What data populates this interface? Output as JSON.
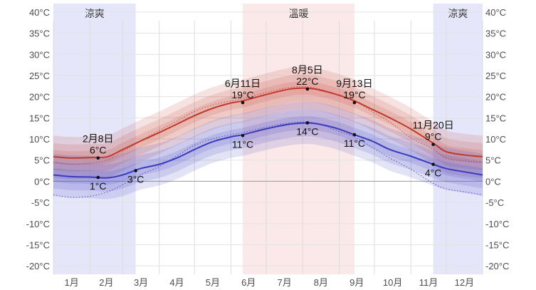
{
  "chart_data": {
    "type": "line",
    "title": "",
    "xlabel": "",
    "ylabel": "",
    "x_ticks": [
      "1月",
      "2月",
      "3月",
      "4月",
      "5月",
      "6月",
      "7月",
      "8月",
      "9月",
      "10月",
      "11月",
      "12月"
    ],
    "y_ticks": [
      "40°C",
      "35°C",
      "30°C",
      "25°C",
      "20°C",
      "15°C",
      "10°C",
      "5°C",
      "0°C",
      "-5°C",
      "-10°C",
      "-15°C",
      "-20°C"
    ],
    "ylim": [
      -22,
      42
    ],
    "xlim_day": [
      0,
      365
    ],
    "grid": true,
    "seasons": [
      {
        "label": "涼爽",
        "start_day": 0,
        "end_day": 70,
        "color": "#e6e6fb"
      },
      {
        "label": "溫暖",
        "start_day": 161,
        "end_day": 256,
        "color": "#fbe9e9"
      },
      {
        "label": "涼爽",
        "start_day": 323,
        "end_day": 365,
        "color": "#e6e6fb"
      }
    ],
    "x_day": [
      0,
      15,
      32,
      46,
      59,
      74,
      90,
      105,
      120,
      135,
      151,
      161,
      181,
      201,
      216,
      226,
      241,
      256,
      271,
      286,
      303,
      323,
      334,
      350,
      365
    ],
    "series": [
      {
        "role": "high",
        "color": "#c0392b",
        "values": [
          5.8,
          5.5,
          5.6,
          5.8,
          7.5,
          9.5,
          11.5,
          13.5,
          15.5,
          17.2,
          18.5,
          19.0,
          20.5,
          21.8,
          22.0,
          21.6,
          20.5,
          19.0,
          17.0,
          15.0,
          12.5,
          9.0,
          7.0,
          6.2,
          5.8
        ]
      },
      {
        "role": "low",
        "color": "#3b3bbd",
        "values": [
          1.5,
          1.1,
          1.0,
          0.8,
          1.5,
          3.0,
          4.0,
          5.5,
          7.5,
          9.3,
          10.5,
          11.0,
          12.4,
          13.5,
          13.8,
          13.5,
          12.5,
          11.0,
          9.5,
          7.5,
          6.0,
          4.0,
          3.0,
          2.2,
          1.5
        ]
      },
      {
        "role": "high-normal",
        "color": "#c0392b",
        "values": [
          4.5,
          4.0,
          4.3,
          5.0,
          7.0,
          9.5,
          12.0,
          14.2,
          16.5,
          18.0,
          19.0,
          19.5,
          21.0,
          22.2,
          22.3,
          21.8,
          20.5,
          19.0,
          16.5,
          14.0,
          10.5,
          7.5,
          5.5,
          4.8,
          4.5
        ]
      },
      {
        "role": "low-normal",
        "color": "#3b3bbd",
        "values": [
          -3.2,
          -3.8,
          -3.5,
          -2.5,
          -0.8,
          1.5,
          3.5,
          6.0,
          8.5,
          10.0,
          11.0,
          11.5,
          12.8,
          13.8,
          14.0,
          13.5,
          12.0,
          10.5,
          8.0,
          5.5,
          3.0,
          -0.5,
          -1.8,
          -2.5,
          -3.2
        ]
      }
    ],
    "bands": [
      {
        "series": "high",
        "color": "#c0392b",
        "upper_offset": [
          5.0,
          3.2,
          1.6
        ],
        "lower_offset": [
          -5.0,
          -3.2,
          -1.6
        ]
      },
      {
        "series": "low",
        "color": "#3b3bbd",
        "upper_offset": [
          5.0,
          3.2,
          1.6
        ],
        "lower_offset": [
          -5.0,
          -3.2,
          -1.6
        ]
      }
    ],
    "annotations": [
      {
        "day": 38,
        "value": 5.5,
        "date": "2月8日",
        "temp": "6°C",
        "pos": "above"
      },
      {
        "day": 38,
        "value": 0.9,
        "date": "",
        "temp": "1°C",
        "pos": "below"
      },
      {
        "day": 70,
        "value": 2.5,
        "date": "",
        "temp": "3°C",
        "pos": "below"
      },
      {
        "day": 161,
        "value": 18.6,
        "date": "6月11日",
        "temp": "19°C",
        "pos": "above"
      },
      {
        "day": 161,
        "value": 10.8,
        "date": "",
        "temp": "11°C",
        "pos": "below"
      },
      {
        "day": 216,
        "value": 21.8,
        "date": "8月5日",
        "temp": "22°C",
        "pos": "above"
      },
      {
        "day": 216,
        "value": 13.8,
        "date": "",
        "temp": "14°C",
        "pos": "below"
      },
      {
        "day": 256,
        "value": 18.6,
        "date": "9月13日",
        "temp": "19°C",
        "pos": "above"
      },
      {
        "day": 256,
        "value": 11.0,
        "date": "",
        "temp": "11°C",
        "pos": "below"
      },
      {
        "day": 323,
        "value": 8.7,
        "date": "11月20日",
        "temp": "9°C",
        "pos": "above"
      },
      {
        "day": 323,
        "value": 4.0,
        "date": "",
        "temp": "4°C",
        "pos": "below"
      }
    ]
  }
}
